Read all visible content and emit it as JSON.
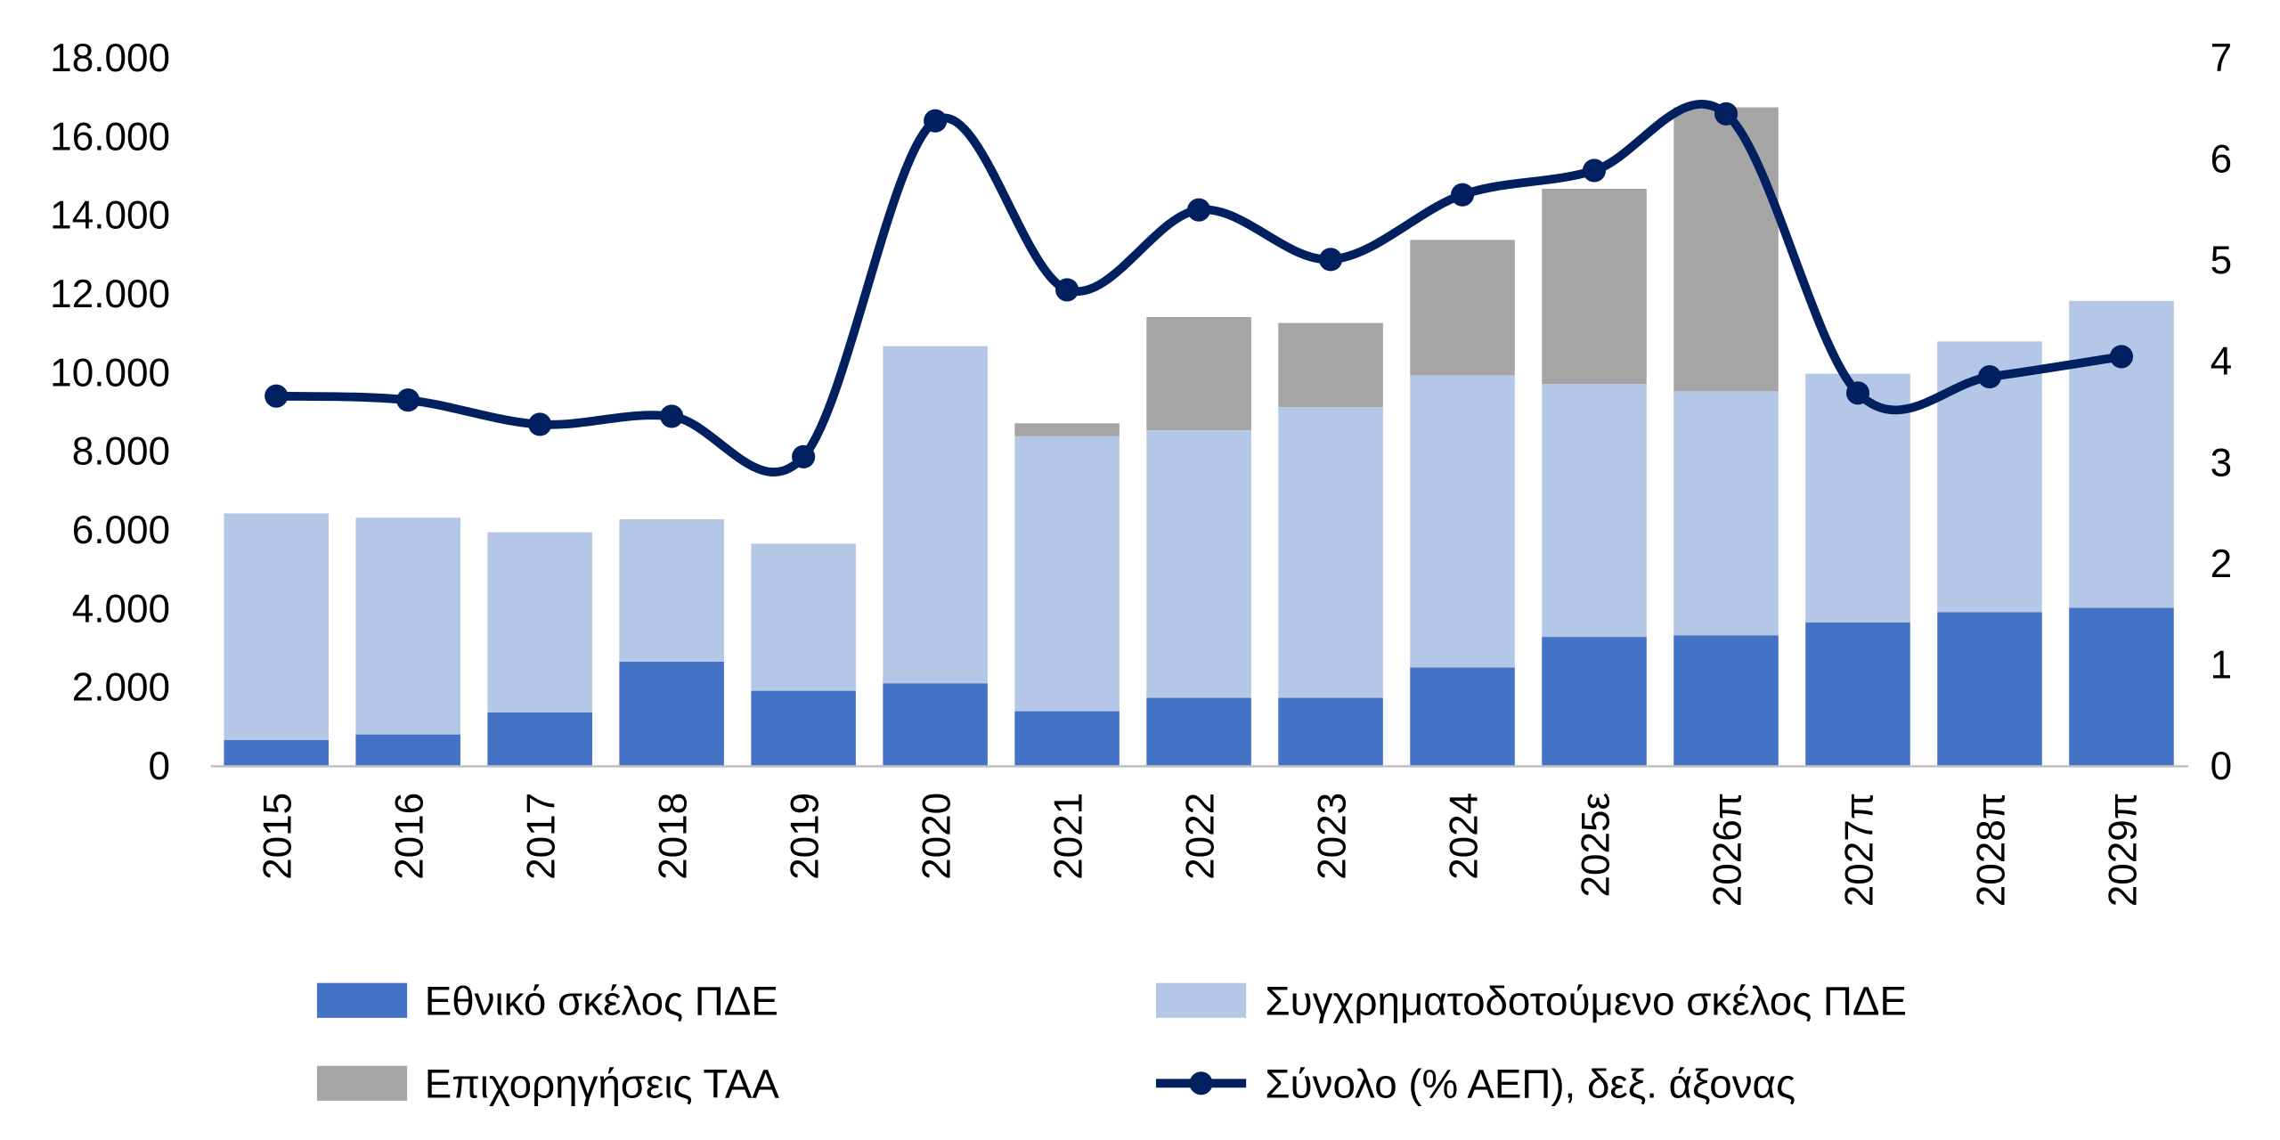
{
  "chart_data": {
    "type": "bar",
    "stacked": true,
    "categories": [
      "2015",
      "2016",
      "2017",
      "2018",
      "2019",
      "2020",
      "2021",
      "2022",
      "2023",
      "2024",
      "2025ε",
      "2026π",
      "2027π",
      "2028π",
      "2029π"
    ],
    "series": [
      {
        "name": "Εθνικό σκέλος ΠΔΕ",
        "type": "bar",
        "axis": "left",
        "color": "#4472C4",
        "values": [
          670,
          810,
          1370,
          2660,
          1920,
          2110,
          1400,
          1740,
          1740,
          2510,
          3290,
          3330,
          3660,
          3920,
          4030
        ]
      },
      {
        "name": "Συγχρηματοδοτούμενο σκέλος ΠΔΕ",
        "type": "bar",
        "axis": "left",
        "color": "#B4C7E7",
        "values": [
          5760,
          5510,
          4580,
          3620,
          3740,
          8570,
          6990,
          6800,
          7390,
          7430,
          6430,
          6210,
          6320,
          6880,
          7800
        ]
      },
      {
        "name": "Επιχορηγήσεις ΤΑΑ",
        "type": "bar",
        "axis": "left",
        "color": "#A5A5A5",
        "values": [
          0,
          0,
          0,
          0,
          0,
          0,
          330,
          2880,
          2140,
          3440,
          4960,
          7210,
          0,
          0,
          0
        ]
      },
      {
        "name": "Σύνολο (% ΑΕΠ), δεξ. άξονας",
        "type": "line",
        "axis": "right",
        "color": "#002060",
        "smooth": true,
        "values": [
          3.66,
          3.62,
          3.38,
          3.46,
          3.06,
          6.38,
          4.71,
          5.5,
          5.01,
          5.65,
          5.89,
          6.45,
          3.69,
          3.85,
          4.05
        ]
      }
    ],
    "yleft": {
      "range": [
        0,
        18000
      ],
      "ticks": [
        "0",
        "2.000",
        "4.000",
        "6.000",
        "8.000",
        "10.000",
        "12.000",
        "14.000",
        "16.000",
        "18.000"
      ]
    },
    "yright": {
      "range": [
        0,
        7
      ],
      "ticks": [
        "0",
        "1",
        "2",
        "3",
        "4",
        "5",
        "6",
        "7"
      ]
    },
    "grid": false,
    "legend_position": "bottom"
  }
}
